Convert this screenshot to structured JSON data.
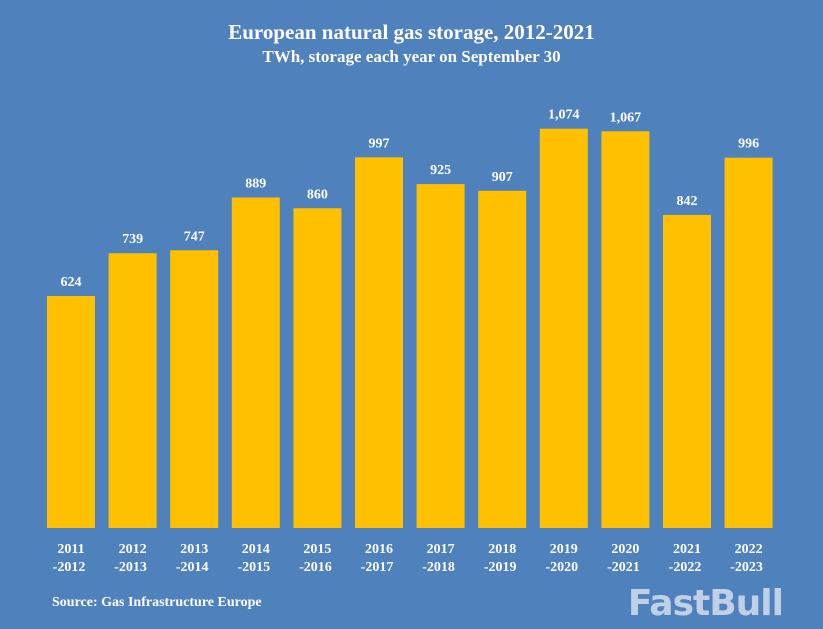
{
  "chart_data": {
    "type": "bar",
    "title": "European natural gas storage, 2012-2021",
    "subtitle": "TWh, storage each year on September 30",
    "categories": [
      [
        "2011",
        "-2012"
      ],
      [
        "2012",
        "-2013"
      ],
      [
        "2013",
        "-2014"
      ],
      [
        "2014",
        "-2015"
      ],
      [
        "2015",
        "-2016"
      ],
      [
        "2016",
        "-2017"
      ],
      [
        "2017",
        "-2018"
      ],
      [
        "2018",
        "-2019"
      ],
      [
        "2019",
        "-2020"
      ],
      [
        "2020",
        "-2021"
      ],
      [
        "2021",
        "-2022"
      ],
      [
        "2022",
        "-2023"
      ]
    ],
    "values": [
      624,
      739,
      747,
      889,
      860,
      997,
      925,
      907,
      1074,
      1067,
      842,
      996
    ],
    "data_labels": [
      "624",
      "739",
      "747",
      "889",
      "860",
      "997",
      "925",
      "907",
      "1,074",
      "1,067",
      "842",
      "996"
    ],
    "ylim": [
      0,
      1100
    ],
    "grid": false,
    "bar_color": "#ffc000",
    "background_color": "#4f81bd",
    "source": "Source: Gas Infrastructure Europe"
  },
  "watermark": "FastBull"
}
